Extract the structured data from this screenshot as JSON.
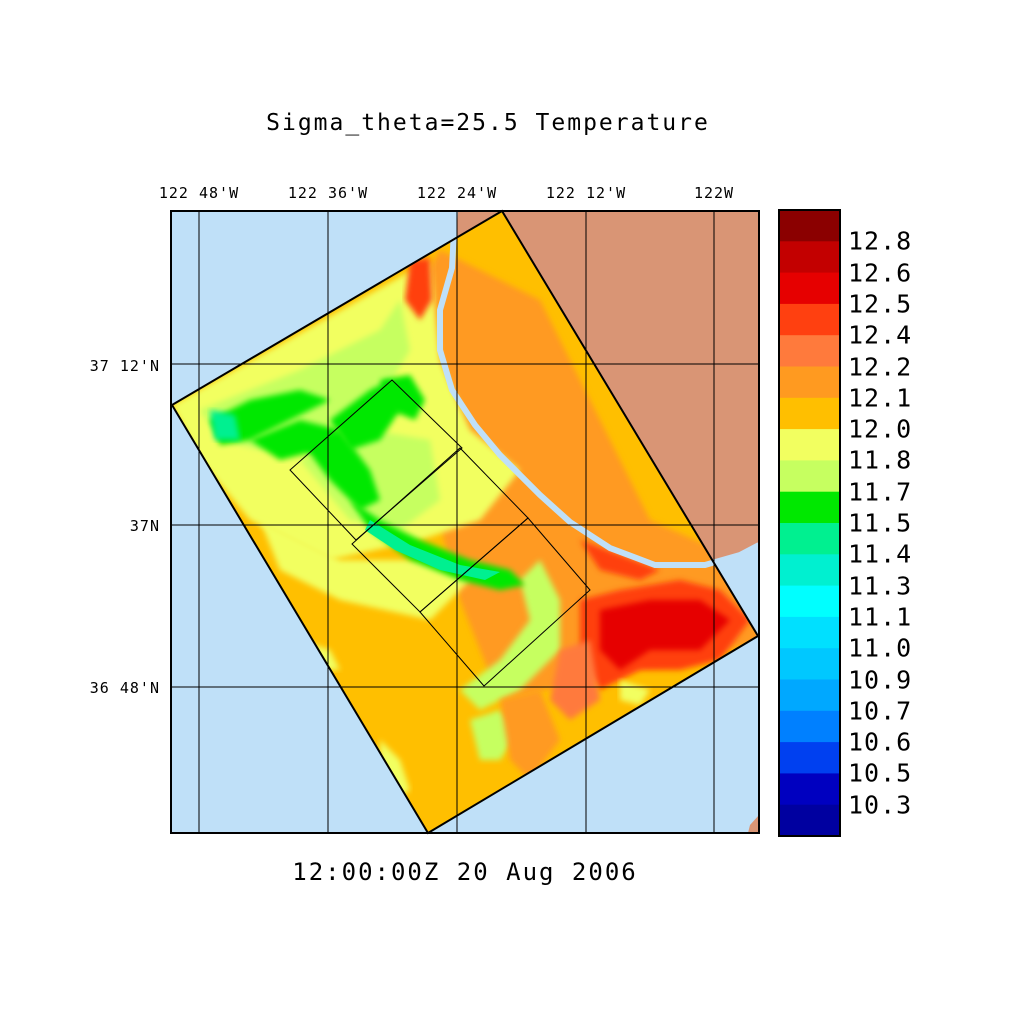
{
  "title": "Sigma_theta=25.5 Temperature",
  "timestamp": "12:00:00Z  20 Aug 2006",
  "lon_labels": [
    "122 48'W",
    "122 36'W",
    "122 24'W",
    "122 12'W",
    "122W"
  ],
  "lat_labels": [
    "37 12'N",
    "37N",
    "36 48'N"
  ],
  "colorbar_labels": [
    "12.8",
    "12.6",
    "12.5",
    "12.4",
    "12.2",
    "12.1",
    "12.0",
    "11.8",
    "11.7",
    "11.5",
    "11.4",
    "11.3",
    "11.1",
    "11.0",
    "10.9",
    "10.7",
    "10.6",
    "10.5",
    "10.3"
  ],
  "colorbar_colors": [
    "#8b0000",
    "#c30000",
    "#e60000",
    "#ff4010",
    "#ff7a3c",
    "#ff9a20",
    "#ffbf00",
    "#f2ff60",
    "#c6ff60",
    "#00e800",
    "#00f090",
    "#00f0d0",
    "#00ffff",
    "#00e0ff",
    "#00c8ff",
    "#00a8ff",
    "#0080ff",
    "#0040f0",
    "#0000c0"
  ],
  "colors": {
    "ocean": "#bfe0f8",
    "land": "#d99575",
    "field_base": "#ffbf00"
  }
}
